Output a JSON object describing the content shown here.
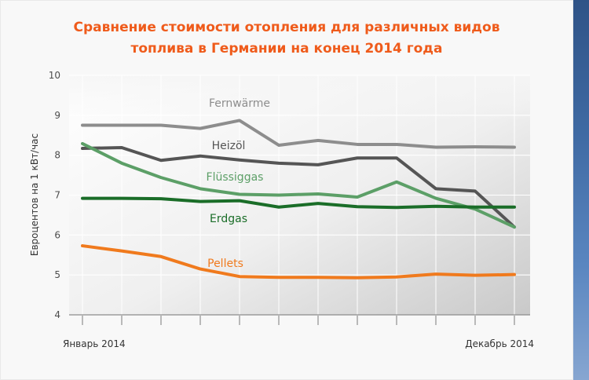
{
  "chart_data": {
    "type": "line",
    "title": "Сравнение стоимости отопления для различных видов\nтоплива в Германии на конец 2014 года",
    "ylabel": "Евроцентов на 1 кВт/час",
    "y_ticks": [
      4,
      5,
      6,
      7,
      8,
      9,
      10
    ],
    "ylim": [
      4,
      10
    ],
    "x_ticks_count": 12,
    "x_labels": {
      "start": "Январь 2014",
      "end": "Декабрь 2014"
    },
    "series": [
      {
        "name": "Fernwärme",
        "color": "#8d8d8d",
        "values": [
          8.75,
          8.75,
          8.75,
          8.67,
          8.87,
          8.25,
          8.37,
          8.27,
          8.27,
          8.2,
          8.21,
          8.2
        ]
      },
      {
        "name": "Heizöl",
        "color": "#555555",
        "values": [
          8.17,
          8.19,
          7.87,
          7.98,
          7.88,
          7.8,
          7.76,
          7.93,
          7.93,
          7.16,
          7.1,
          6.2
        ]
      },
      {
        "name": "Flüssiggas",
        "color": "#5c9f67",
        "values": [
          8.29,
          7.8,
          7.44,
          7.16,
          7.02,
          7.0,
          7.03,
          6.95,
          7.33,
          6.92,
          6.65,
          6.2
        ]
      },
      {
        "name": "Erdgas",
        "color": "#1a6d28",
        "values": [
          6.92,
          6.92,
          6.91,
          6.84,
          6.86,
          6.7,
          6.79,
          6.71,
          6.69,
          6.72,
          6.7,
          6.7
        ]
      },
      {
        "name": "Pellets",
        "color": "#f07a1d",
        "values": [
          5.73,
          5.6,
          5.46,
          5.15,
          4.96,
          4.94,
          4.94,
          4.93,
          4.95,
          5.02,
          4.99,
          5.01
        ]
      }
    ]
  }
}
